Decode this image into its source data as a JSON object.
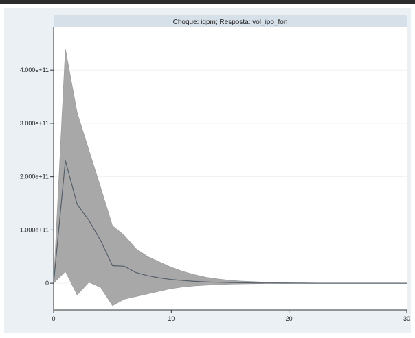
{
  "chart_data": {
    "type": "line",
    "title": "Choque: igpm; Resposta: vol_ipo_fon",
    "xlabel": "",
    "ylabel": "",
    "xlim": [
      0,
      30
    ],
    "ylim": [
      -50000000000,
      480000000000
    ],
    "x_ticks": [
      0,
      10,
      20,
      30
    ],
    "x_tick_labels": [
      "0",
      "10",
      "20",
      "30"
    ],
    "y_ticks": [
      0,
      100000000000,
      200000000000,
      300000000000,
      400000000000
    ],
    "y_tick_labels": [
      "0",
      "1.000e+11",
      "2.000e+11",
      "3.000e+11",
      "4.000e+11"
    ],
    "grid": true,
    "x": [
      0,
      1,
      2,
      3,
      4,
      5,
      6,
      7,
      8,
      9,
      10,
      11,
      12,
      13,
      14,
      15,
      16,
      17,
      18,
      19,
      20,
      21,
      22,
      23,
      24,
      25,
      26,
      27,
      28,
      29,
      30
    ],
    "series": [
      {
        "role": "response",
        "color": "#555f6a",
        "values": [
          0,
          230000000000,
          148000000000,
          118000000000,
          80000000000,
          33000000000,
          32000000000,
          20000000000,
          14000000000,
          10000000000,
          7000000000,
          5000000000,
          3500000000,
          2500000000,
          1800000000,
          1300000000,
          900000000,
          600000000,
          400000000,
          300000000,
          200000000,
          150000000,
          100000000,
          80000000,
          60000000,
          40000000,
          30000000,
          20000000,
          15000000,
          10000000,
          5000000
        ]
      }
    ],
    "band": {
      "role": "confidence-interval",
      "color": "#a8a8a8",
      "upper": [
        0,
        440000000000,
        320000000000,
        250000000000,
        180000000000,
        108000000000,
        90000000000,
        65000000000,
        50000000000,
        40000000000,
        30000000000,
        22000000000,
        16000000000,
        11000000000,
        8000000000,
        5500000000,
        4000000000,
        3000000000,
        2000000000,
        1500000000,
        1000000000,
        700000000,
        500000000,
        350000000,
        250000000,
        180000000,
        120000000,
        80000000,
        50000000,
        30000000,
        15000000
      ],
      "lower": [
        0,
        22000000000,
        -22000000000,
        2000000000,
        -8000000000,
        -42000000000,
        -30000000000,
        -25000000000,
        -20000000000,
        -15000000000,
        -10000000000,
        -7000000000,
        -5000000000,
        -3500000000,
        -2500000000,
        -1800000000,
        -1200000000,
        -800000000,
        -500000000,
        -350000000,
        -250000000,
        -180000000,
        -120000000,
        -80000000,
        -50000000,
        -35000000,
        -25000000,
        -15000000,
        -10000000,
        -5000000,
        -2000000
      ]
    }
  }
}
